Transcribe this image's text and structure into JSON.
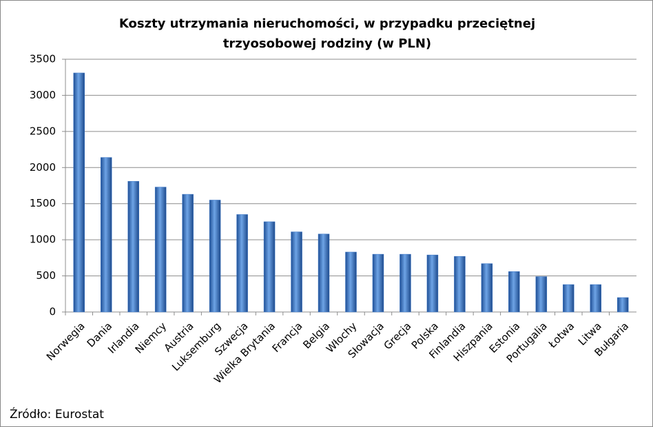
{
  "chart_data": {
    "type": "bar",
    "title": [
      "Koszty utrzymania nieruchomości, w przypadku przeciętnej",
      "trzyosobowej rodziny (w PLN)"
    ],
    "categories": [
      "Norwegia",
      "Dania",
      "Irlandia",
      "Niemcy",
      "Austria",
      "Luksemburg",
      "Szwecja",
      "Wielka Brytania",
      "Francja",
      "Belgia",
      "Włochy",
      "Słowacja",
      "Grecja",
      "Polska",
      "Finlandia",
      "Hiszpania",
      "Estonia",
      "Portugalia",
      "Łotwa",
      "Litwa",
      "Bułgaria"
    ],
    "values": [
      3310,
      2140,
      1810,
      1730,
      1630,
      1550,
      1350,
      1250,
      1110,
      1080,
      830,
      800,
      800,
      790,
      770,
      670,
      560,
      490,
      380,
      380,
      200
    ],
    "color": "#3d78c8",
    "ylim": [
      0,
      3500
    ],
    "yticks": [
      0,
      500,
      1000,
      1500,
      2000,
      2500,
      3000,
      3500
    ],
    "grid": true,
    "source": "Źródło: Eurostat"
  }
}
